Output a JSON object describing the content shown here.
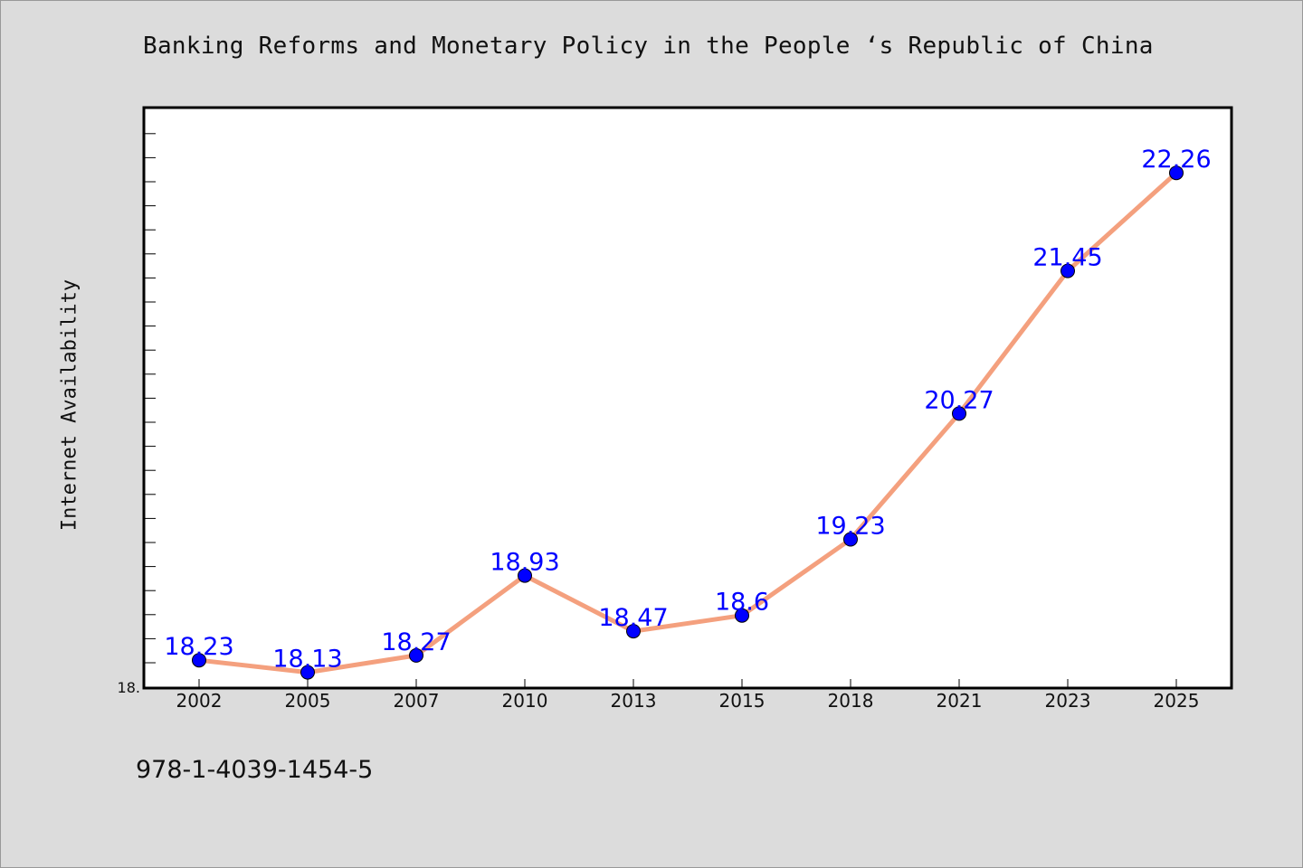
{
  "chart_data": {
    "type": "line",
    "title": "Banking Reforms and Monetary Policy in the People ‘s Republic of China",
    "xlabel": "",
    "ylabel": "Internet Availability",
    "categories": [
      "2002",
      "2005",
      "2007",
      "2010",
      "2013",
      "2015",
      "2018",
      "2021",
      "2023",
      "2025"
    ],
    "values": [
      18.23,
      18.13,
      18.27,
      18.93,
      18.47,
      18.6,
      19.23,
      20.27,
      21.45,
      22.26
    ],
    "data_labels": [
      "18.23",
      "18.13",
      "18.27",
      "18.93",
      "18.47",
      "18.6",
      "19.23",
      "20.27",
      "21.45",
      "22.26"
    ],
    "y_tick_labels": [
      "18."
    ],
    "ylim": [
      18.0,
      22.8
    ],
    "grid": false,
    "legend": "none",
    "colors": {
      "line": "#f4a07e",
      "marker": "#0000ff",
      "label": "#0000ff",
      "background": "#dcdcdc",
      "plot_background": "#ffffff"
    }
  },
  "footer": {
    "code": "978-1-4039-1454-5"
  }
}
